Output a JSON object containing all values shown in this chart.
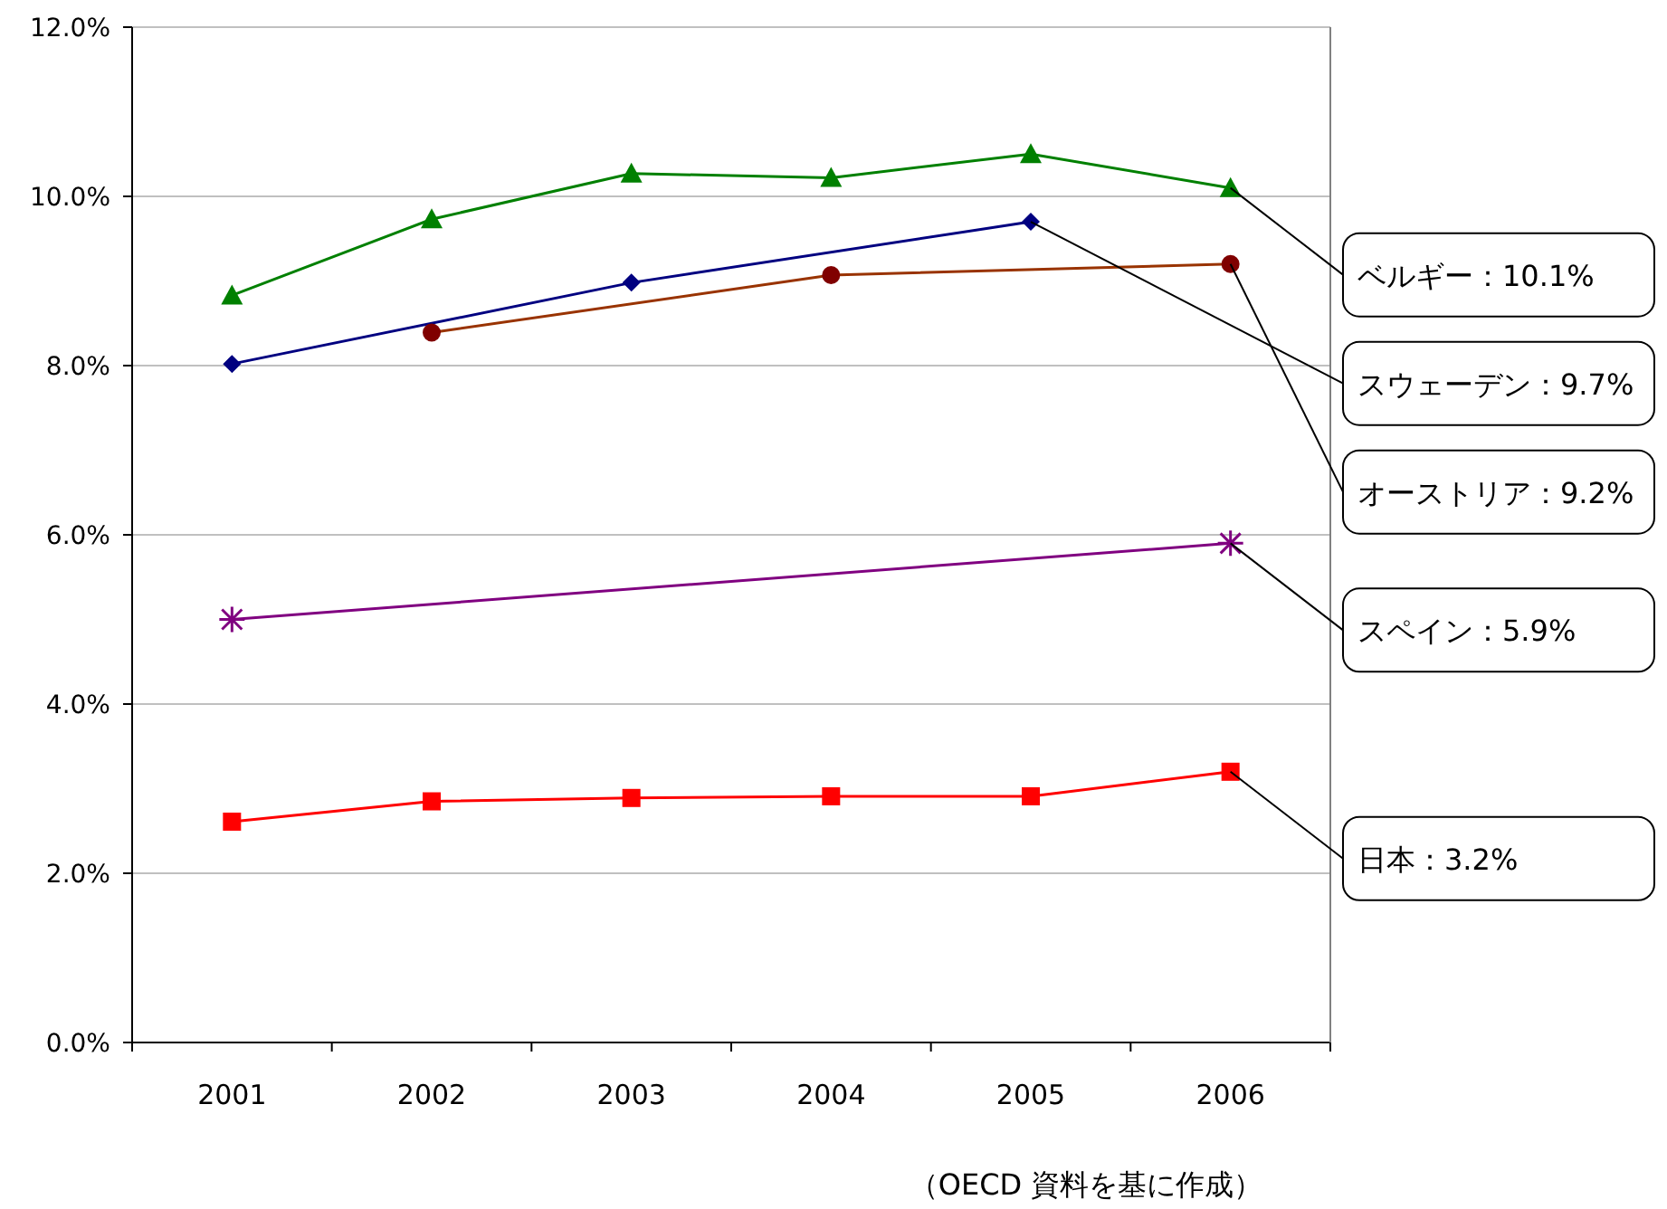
{
  "chart_data": {
    "type": "line",
    "categories": [
      "2001",
      "2002",
      "2003",
      "2004",
      "2005",
      "2006"
    ],
    "ylim": [
      0,
      12
    ],
    "yticks": [
      {
        "value": 0,
        "label": "0.0%"
      },
      {
        "value": 2,
        "label": "2.0%"
      },
      {
        "value": 4,
        "label": "4.0%"
      },
      {
        "value": 6,
        "label": "6.0%"
      },
      {
        "value": 8,
        "label": "8.0%"
      },
      {
        "value": 10,
        "label": "10.0%"
      },
      {
        "value": 12,
        "label": "12.0%"
      }
    ],
    "grid": "y",
    "series": [
      {
        "color": "#008000",
        "marker": "triangle",
        "values": [
          8.83,
          9.73,
          10.27,
          10.22,
          10.5,
          10.1
        ]
      },
      {
        "color": "#000080",
        "marker": "diamond",
        "values": [
          8.02,
          null,
          8.98,
          null,
          9.7,
          null
        ]
      },
      {
        "color": "#993300",
        "marker": "circle",
        "values": [
          null,
          8.39,
          null,
          9.07,
          null,
          9.2
        ]
      },
      {
        "color": "#800080",
        "marker": "cross",
        "values": [
          5.0,
          null,
          null,
          null,
          null,
          5.9
        ]
      },
      {
        "color": "#ff0000",
        "marker": "square",
        "values": [
          2.61,
          2.85,
          2.89,
          2.91,
          2.91,
          3.2
        ]
      }
    ],
    "annotations": [
      {
        "text": "ベルギー：10.1%",
        "x": "2006",
        "y": 10.1
      },
      {
        "text": "スウェーデン：9.7%",
        "x": "2005",
        "y": 9.7
      },
      {
        "text": "オーストリア：9.2%",
        "x": "2006",
        "y": 9.2
      },
      {
        "text": "スペイン：5.9%",
        "x": "2006",
        "y": 5.9
      },
      {
        "text": "日本：3.2%",
        "x": "2006",
        "y": 3.2
      },
      "（OECD 資料を基に作成）"
    ]
  }
}
